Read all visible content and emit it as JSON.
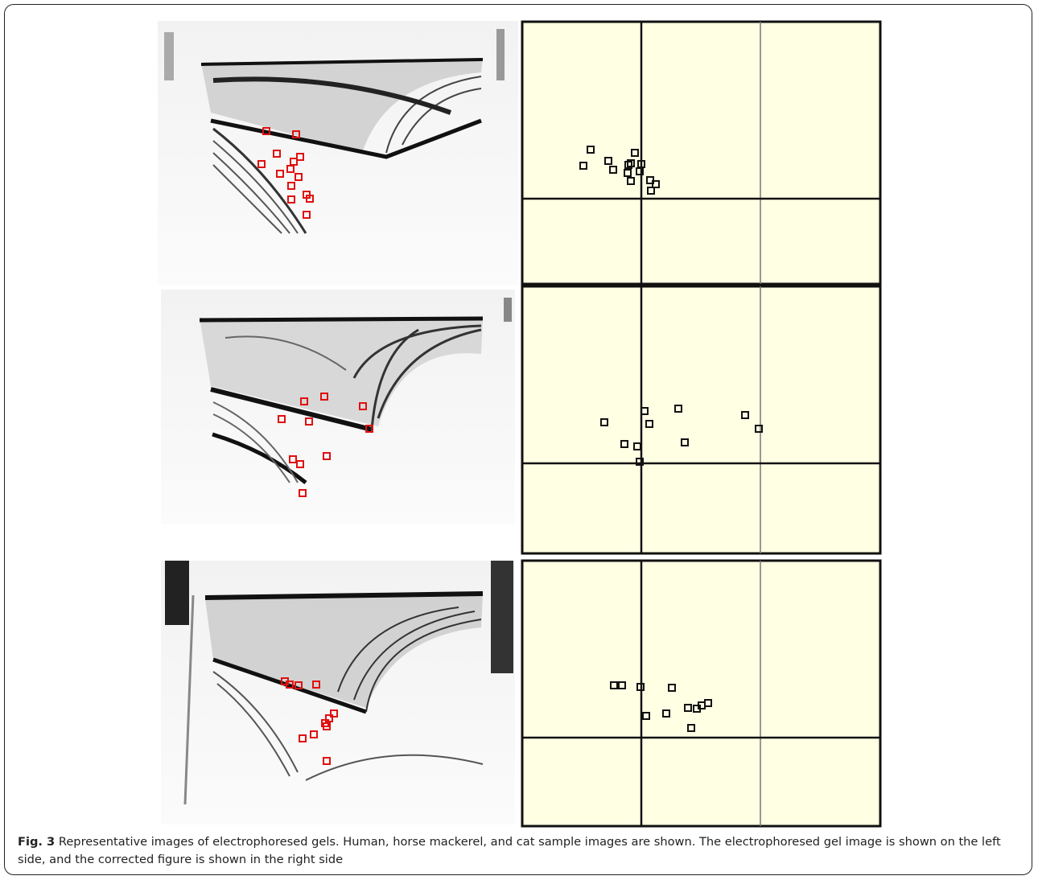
{
  "figure": {
    "label": "Fig. 3",
    "caption": "Representative images of electrophoresed gels. Human, horse mackerel, and cat sample images are shown. The electrophoresed gel image is shown on the left side, and the corrected figure is shown in the right side"
  }
}
